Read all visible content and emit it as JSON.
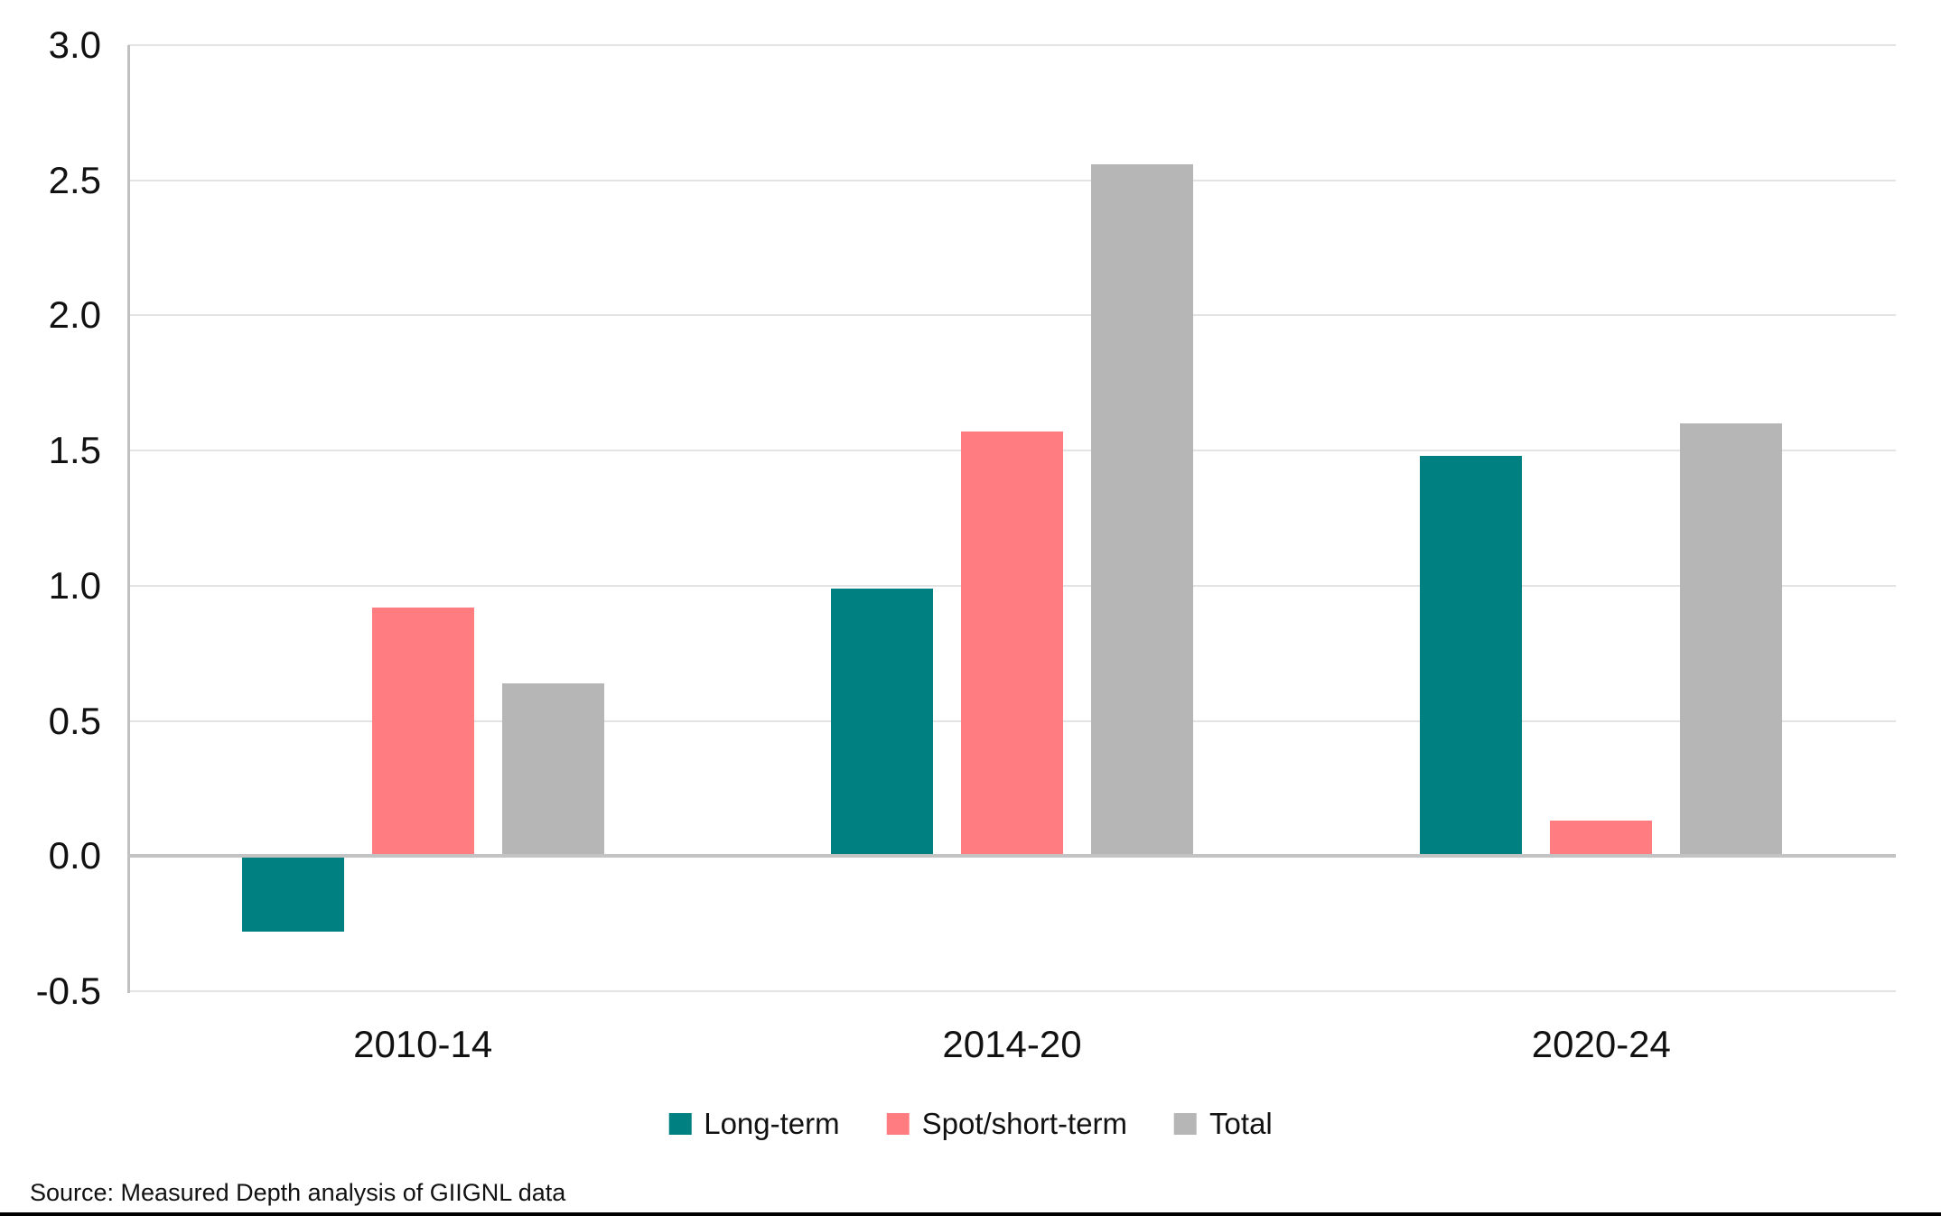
{
  "chart_data": {
    "type": "bar",
    "title": "",
    "categories": [
      "2010-14",
      "2014-20",
      "2020-24"
    ],
    "series": [
      {
        "name": "Long-term",
        "color": "#008080",
        "values": [
          -0.28,
          0.99,
          1.48
        ]
      },
      {
        "name": "Spot/short-term",
        "color": "#FF7C80",
        "values": [
          0.92,
          1.57,
          0.13
        ]
      },
      {
        "name": "Total",
        "color": "#B6B6B6",
        "values": [
          0.64,
          2.56,
          1.6
        ]
      }
    ],
    "y_axis": {
      "min": -0.5,
      "max": 3.0,
      "step": 0.5,
      "tick_labels": [
        "3.0",
        "2.5",
        "2.0",
        "1.5",
        "1.0",
        "0.5",
        "0.0",
        "-0.5"
      ]
    },
    "grid": true,
    "legend_position": "bottom",
    "legend_entries": [
      "Long-term",
      "Spot/short-term",
      "Total"
    ]
  },
  "source_note": "Source: Measured Depth analysis of GIIGNL data"
}
